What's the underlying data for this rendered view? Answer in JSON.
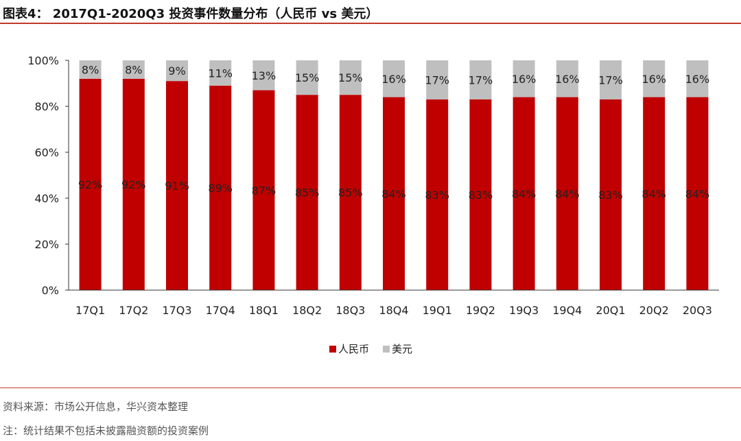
{
  "header": {
    "title": "图表4： 2017Q1-2020Q3 投资事件数量分布（人民币 vs 美元）"
  },
  "footer": {
    "source": "资料来源：市场公开信息，华兴资本整理",
    "note": "注：统计结果不包括未披露融资额的投资案例"
  },
  "colors": {
    "rmb": "#c00000",
    "usd": "#bfbfbf",
    "accent_rule": "#c0392b"
  },
  "chart_data": {
    "type": "bar",
    "stacked": true,
    "categories": [
      "17Q1",
      "17Q2",
      "17Q3",
      "17Q4",
      "18Q1",
      "18Q2",
      "18Q3",
      "18Q4",
      "19Q1",
      "19Q2",
      "19Q3",
      "19Q4",
      "20Q1",
      "20Q2",
      "20Q3"
    ],
    "series": [
      {
        "name": "人民币",
        "values": [
          92,
          92,
          91,
          89,
          87,
          85,
          85,
          84,
          83,
          83,
          84,
          84,
          83,
          84,
          84
        ]
      },
      {
        "name": "美元",
        "values": [
          8,
          8,
          9,
          11,
          13,
          15,
          15,
          16,
          17,
          17,
          16,
          16,
          17,
          16,
          16
        ]
      }
    ],
    "value_labels": {
      "rmb": [
        "92%",
        "92%",
        "91%",
        "89%",
        "87%",
        "85%",
        "85%",
        "84%",
        "83%",
        "83%",
        "84%",
        "84%",
        "83%",
        "84%",
        "84%"
      ],
      "usd": [
        "8%",
        "8%",
        "9%",
        "11%",
        "13%",
        "15%",
        "15%",
        "16%",
        "17%",
        "17%",
        "16%",
        "16%",
        "17%",
        "16%",
        "16%"
      ]
    },
    "ylim": [
      0,
      100
    ],
    "yticks": [
      "0%",
      "20%",
      "40%",
      "60%",
      "80%",
      "100%"
    ],
    "xlabel": "",
    "ylabel": "",
    "grid": false,
    "legend_position": "bottom"
  }
}
